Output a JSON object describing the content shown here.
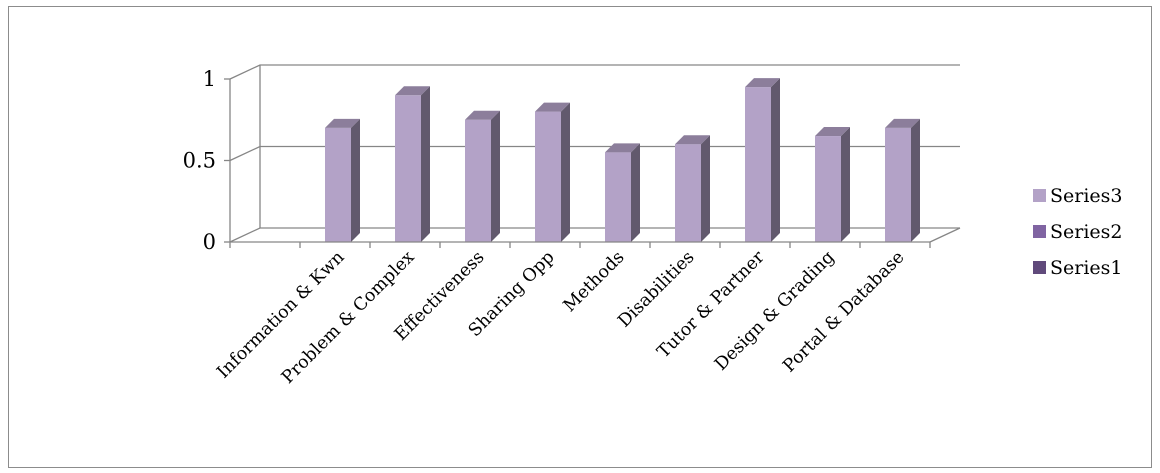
{
  "chart_data": {
    "type": "bar",
    "style": "3d-column",
    "categories": [
      "Information & Kwn",
      "Problem & Complex",
      "Effectiveness",
      "Sharing Opp",
      "Methods",
      "Disabilities",
      "Tutor & Partner",
      "Design & Grading",
      "Portal & Database"
    ],
    "series": [
      {
        "name": "Series1",
        "color": "#604a7b",
        "values": [
          0,
          0,
          0,
          0,
          0,
          0,
          0,
          0,
          0
        ]
      },
      {
        "name": "Series2",
        "color": "#8064a2",
        "values": [
          0,
          0,
          0,
          0,
          0,
          0,
          0,
          0,
          0
        ]
      },
      {
        "name": "Series3",
        "color": "#b3a2c7",
        "values": [
          0.7,
          0.9,
          0.75,
          0.8,
          0.55,
          0.6,
          0.95,
          0.65,
          0.7
        ]
      }
    ],
    "legend_order": [
      "Series3",
      "Series2",
      "Series1"
    ],
    "y_ticks": [
      "0",
      "0.5",
      "1"
    ],
    "ylim": [
      0,
      1
    ],
    "grid": true,
    "legend_position": "right"
  }
}
